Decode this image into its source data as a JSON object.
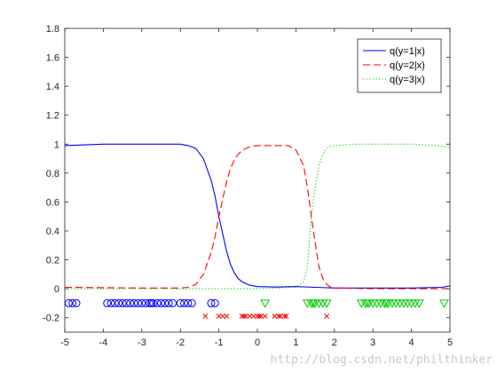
{
  "chart_data": {
    "type": "line",
    "xlim": [
      -5,
      5
    ],
    "ylim": [
      -0.3,
      1.8
    ],
    "x_ticks": [
      "-5",
      "-4",
      "-3",
      "-2",
      "-1",
      "0",
      "1",
      "2",
      "3",
      "4",
      "5"
    ],
    "y_ticks": [
      "-0.2",
      "0",
      "0.2",
      "0.4",
      "0.6",
      "0.8",
      "1",
      "1.2",
      "1.4",
      "1.6",
      "1.8"
    ],
    "grid": false,
    "legend_position": "top-right",
    "series": [
      {
        "name": "q(y=1|x)",
        "color": "#0000ff",
        "style": "solid",
        "x": [
          -5,
          -4,
          -3,
          -2,
          -1.8,
          -1.6,
          -1.4,
          -1.2,
          -1.1,
          -1.0,
          -0.9,
          -0.8,
          -0.7,
          -0.6,
          -0.5,
          -0.4,
          -0.3,
          -0.2,
          0,
          0.5,
          1,
          1.5,
          2,
          3,
          4,
          4.8,
          5
        ],
        "y": [
          0.99,
          1.0,
          1.0,
          1.0,
          0.99,
          0.97,
          0.9,
          0.75,
          0.64,
          0.5,
          0.38,
          0.26,
          0.17,
          0.11,
          0.07,
          0.05,
          0.035,
          0.025,
          0.015,
          0.012,
          0.015,
          0.01,
          0.005,
          0.005,
          0.005,
          0.01,
          0.02
        ]
      },
      {
        "name": "q(y=2|x)",
        "color": "#ff0000",
        "style": "dashed",
        "x": [
          -5,
          -3,
          -2,
          -1.8,
          -1.6,
          -1.4,
          -1.2,
          -1.1,
          -1.0,
          -0.9,
          -0.8,
          -0.7,
          -0.6,
          -0.5,
          -0.4,
          -0.3,
          -0.2,
          0,
          0.4,
          0.8,
          1.0,
          1.2,
          1.3,
          1.4,
          1.5,
          1.6,
          1.7,
          1.8,
          1.9,
          2.0,
          3,
          4,
          5
        ],
        "y": [
          0.01,
          0.005,
          0.005,
          0.01,
          0.03,
          0.1,
          0.25,
          0.36,
          0.5,
          0.62,
          0.74,
          0.83,
          0.89,
          0.93,
          0.955,
          0.97,
          0.98,
          0.99,
          0.99,
          0.99,
          0.96,
          0.85,
          0.7,
          0.5,
          0.32,
          0.15,
          0.07,
          0.03,
          0.01,
          0.005,
          0.0,
          0.0,
          0.0
        ]
      },
      {
        "name": "q(y=3|x)",
        "color": "#00cc00",
        "style": "dotted",
        "x": [
          -5,
          -2,
          0,
          1.0,
          1.2,
          1.3,
          1.4,
          1.5,
          1.6,
          1.7,
          1.8,
          1.9,
          2.0,
          2.5,
          3,
          4,
          4.6,
          5
        ],
        "y": [
          0.0,
          0.0,
          0.0,
          0.01,
          0.05,
          0.15,
          0.5,
          0.7,
          0.85,
          0.93,
          0.97,
          0.985,
          0.99,
          1.0,
          1.0,
          1.0,
          0.99,
          0.98
        ]
      }
    ],
    "scatter": [
      {
        "marker": "circle",
        "color": "#0000ff",
        "y": -0.1,
        "x": [
          -4.9,
          -4.8,
          -4.7,
          -3.9,
          -3.8,
          -3.7,
          -3.6,
          -3.5,
          -3.4,
          -3.3,
          -3.2,
          -3.1,
          -3.0,
          -2.9,
          -2.8,
          -2.75,
          -2.7,
          -2.6,
          -2.5,
          -2.4,
          -2.3,
          -2.2,
          -2.0,
          -1.9,
          -1.8,
          -1.7,
          -1.2,
          -1.1
        ]
      },
      {
        "marker": "x",
        "color": "#ff0000",
        "y": -0.19,
        "x": [
          -1.35,
          -1.0,
          -0.9,
          -0.8,
          -0.4,
          -0.35,
          -0.3,
          -0.2,
          -0.1,
          0.0,
          0.05,
          0.1,
          0.2,
          0.45,
          0.55,
          0.6,
          0.7,
          0.75,
          1.8
        ]
      },
      {
        "marker": "triangle-down",
        "color": "#00cc00",
        "y": -0.1,
        "x": [
          0.2,
          1.3,
          1.4,
          1.45,
          1.5,
          1.6,
          1.7,
          1.8,
          2.7,
          2.8,
          2.85,
          2.9,
          3.0,
          3.1,
          3.2,
          3.3,
          3.35,
          3.4,
          3.5,
          3.6,
          3.7,
          3.8,
          3.9,
          4.0,
          4.1,
          4.2,
          4.85
        ]
      }
    ]
  },
  "watermark": "http://blog.csdn.net/philthinker"
}
